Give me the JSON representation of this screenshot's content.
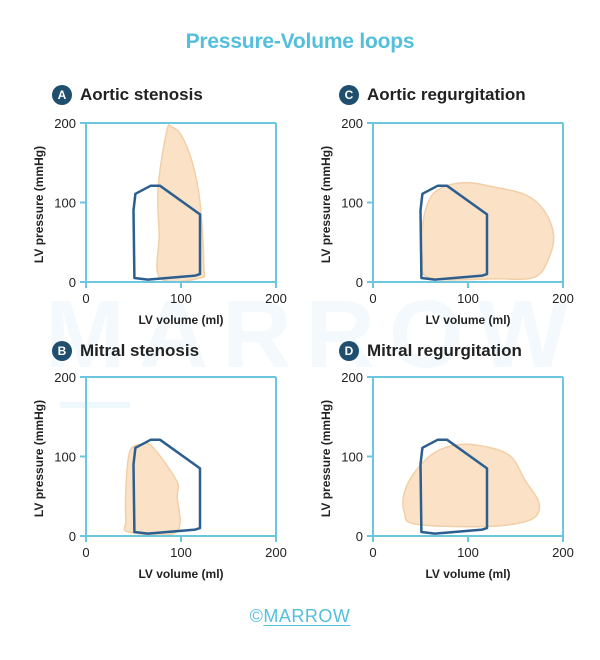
{
  "title": "Pressure-Volume loops",
  "watermark": "MARROW",
  "footer": {
    "symbol": "©",
    "brand": "MARROW"
  },
  "colors": {
    "title": "#54bfdd",
    "axis": "#6cc6dd",
    "badge": "#1f4e6e",
    "normal_loop": "#2c5f8f",
    "normal_loop_overlap": "#8296a4",
    "abnormal_fill": "#fbe2c7",
    "abnormal_stroke": "#f2cfa6",
    "footer": "#54bfdd"
  },
  "panels": [
    {
      "letter": "A",
      "heading": "Aortic stenosis",
      "xlabel": "LV volume (ml)",
      "ylabel": "LV pressure (mmHg)",
      "xticks": [
        "0",
        "100",
        "200"
      ],
      "yticks": [
        "0",
        "100",
        "200"
      ],
      "xlim": [
        0,
        200
      ],
      "ylim": [
        0,
        200
      ],
      "normal_loop": [
        [
          51,
          5
        ],
        [
          65,
          3
        ],
        [
          115,
          8
        ],
        [
          120,
          10
        ],
        [
          120,
          85
        ],
        [
          78,
          121
        ],
        [
          68,
          121
        ],
        [
          52,
          111
        ],
        [
          50,
          90
        ]
      ],
      "abnormal_loop": [
        [
          78,
          5
        ],
        [
          120,
          5
        ],
        [
          124,
          20
        ],
        [
          120,
          100
        ],
        [
          112,
          150
        ],
        [
          100,
          185
        ],
        [
          90,
          195
        ],
        [
          85,
          190
        ],
        [
          76,
          120
        ],
        [
          77,
          60
        ]
      ]
    },
    {
      "letter": "C",
      "heading": "Aortic regurgitation",
      "xlabel": "LV volume (ml)",
      "ylabel": "LV pressure (mmHg)",
      "xticks": [
        "0",
        "100",
        "200"
      ],
      "yticks": [
        "0",
        "100",
        "200"
      ],
      "xlim": [
        0,
        200
      ],
      "ylim": [
        0,
        200
      ],
      "normal_loop": [
        [
          51,
          5
        ],
        [
          65,
          3
        ],
        [
          115,
          8
        ],
        [
          120,
          10
        ],
        [
          120,
          85
        ],
        [
          78,
          121
        ],
        [
          68,
          121
        ],
        [
          52,
          111
        ],
        [
          50,
          90
        ]
      ],
      "abnormal_loop": [
        [
          60,
          5
        ],
        [
          130,
          4
        ],
        [
          170,
          6
        ],
        [
          185,
          30
        ],
        [
          190,
          60
        ],
        [
          180,
          90
        ],
        [
          160,
          110
        ],
        [
          125,
          120
        ],
        [
          100,
          125
        ],
        [
          75,
          120
        ],
        [
          60,
          105
        ],
        [
          52,
          70
        ],
        [
          52,
          30
        ]
      ]
    },
    {
      "letter": "B",
      "heading": "Mitral stenosis",
      "xlabel": "LV volume (ml)",
      "ylabel": "LV pressure (mmHg)",
      "xticks": [
        "0",
        "100",
        "200"
      ],
      "yticks": [
        "0",
        "100",
        "200"
      ],
      "xlim": [
        0,
        200
      ],
      "ylim": [
        0,
        200
      ],
      "normal_loop": [
        [
          51,
          5
        ],
        [
          65,
          3
        ],
        [
          115,
          8
        ],
        [
          120,
          10
        ],
        [
          120,
          85
        ],
        [
          78,
          121
        ],
        [
          68,
          121
        ],
        [
          52,
          111
        ],
        [
          50,
          90
        ]
      ],
      "abnormal_loop": [
        [
          45,
          5
        ],
        [
          95,
          5
        ],
        [
          96,
          50
        ],
        [
          95,
          70
        ],
        [
          70,
          112
        ],
        [
          58,
          115
        ],
        [
          46,
          106
        ],
        [
          42,
          60
        ],
        [
          42,
          20
        ]
      ]
    },
    {
      "letter": "D",
      "heading": "Mitral regurgitation",
      "xlabel": "LV volume (ml)",
      "ylabel": "LV pressure (mmHg)",
      "xticks": [
        "0",
        "100",
        "200"
      ],
      "yticks": [
        "0",
        "100",
        "200"
      ],
      "xlim": [
        0,
        200
      ],
      "ylim": [
        0,
        200
      ],
      "normal_loop": [
        [
          51,
          5
        ],
        [
          65,
          3
        ],
        [
          115,
          8
        ],
        [
          120,
          10
        ],
        [
          120,
          85
        ],
        [
          78,
          121
        ],
        [
          68,
          121
        ],
        [
          52,
          111
        ],
        [
          50,
          90
        ]
      ],
      "abnormal_loop": [
        [
          45,
          15
        ],
        [
          120,
          12
        ],
        [
          165,
          20
        ],
        [
          175,
          40
        ],
        [
          160,
          70
        ],
        [
          145,
          100
        ],
        [
          120,
          112
        ],
        [
          90,
          115
        ],
        [
          65,
          105
        ],
        [
          45,
          82
        ],
        [
          33,
          55
        ],
        [
          33,
          30
        ]
      ]
    }
  ]
}
